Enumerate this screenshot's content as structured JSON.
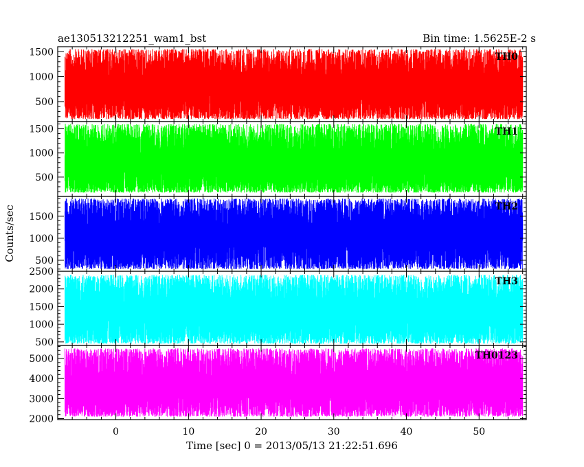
{
  "chart_data": {
    "type": "line",
    "title_left": "ae130513212251_wam1_bst",
    "title_right": "Bin time: 1.5625E-2 s",
    "xlabel": "Time [sec] 0 = 2013/05/13 21:22:51.696",
    "ylabel": "Counts/sec",
    "xlim": [
      -8,
      56.5
    ],
    "x_data_range": [
      -7,
      56
    ],
    "xticks": [
      0,
      10,
      20,
      30,
      40,
      50
    ],
    "grid": false,
    "panels": [
      {
        "name": "TH0",
        "color": "#ff0000",
        "ylim": [
          100,
          1600
        ],
        "yticks": [
          500,
          1000,
          1500
        ],
        "approx_min": 150,
        "approx_max": 1550,
        "approx_mean": 720
      },
      {
        "name": "TH1",
        "color": "#00ff00",
        "ylim": [
          100,
          1650
        ],
        "yticks": [
          500,
          1000,
          1500
        ],
        "approx_min": 180,
        "approx_max": 1600,
        "approx_mean": 700
      },
      {
        "name": "TH2",
        "color": "#0000ff",
        "ylim": [
          250,
          1950
        ],
        "yticks": [
          500,
          1000,
          1500
        ],
        "approx_min": 300,
        "approx_max": 1900,
        "approx_mean": 1050
      },
      {
        "name": "TH3",
        "color": "#00ffff",
        "ylim": [
          400,
          2500
        ],
        "yticks": [
          500,
          1000,
          1500,
          2000,
          2500
        ],
        "approx_min": 450,
        "approx_max": 2400,
        "approx_mean": 1250
      },
      {
        "name": "TH0123",
        "color": "#ff00ff",
        "ylim": [
          1950,
          5650
        ],
        "yticks": [
          2000,
          3000,
          4000,
          5000
        ],
        "approx_min": 2100,
        "approx_max": 5500,
        "approx_mean": 3500
      }
    ]
  }
}
